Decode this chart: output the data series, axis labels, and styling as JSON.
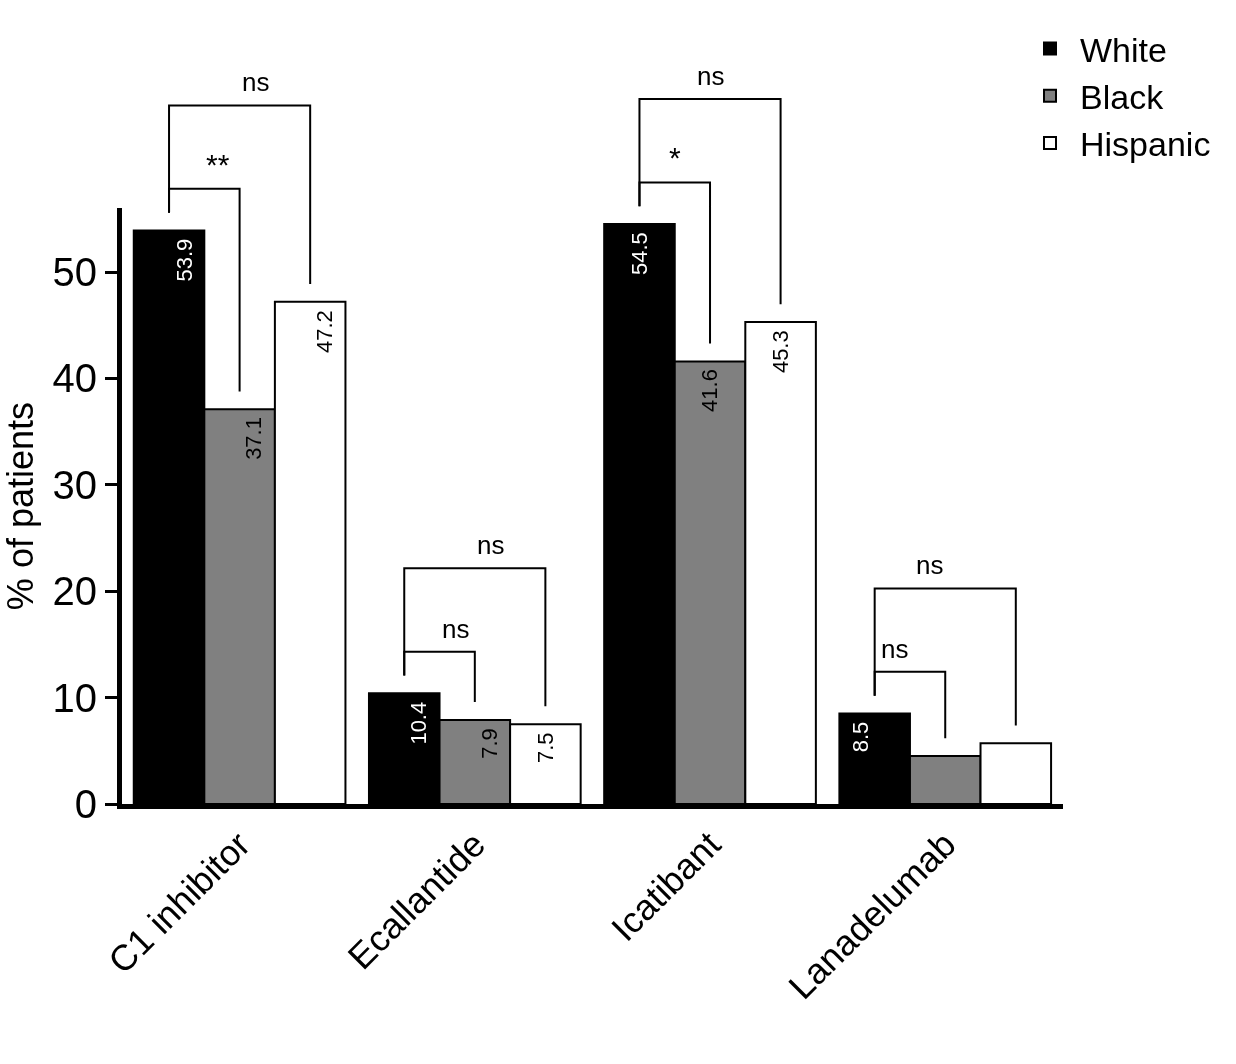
{
  "chart_data": {
    "type": "bar",
    "ylabel": "% of patients",
    "categories": [
      "C1 inhibitor",
      "Ecallantide",
      "Icatibant",
      "Lanadelumab"
    ],
    "series": [
      {
        "name": "White",
        "color": "#000000",
        "values": [
          53.9,
          10.4,
          54.5,
          8.5
        ],
        "value_labels": [
          "53.9",
          "10.4",
          "54.5",
          "8.5"
        ]
      },
      {
        "name": "Black",
        "color": "#808080",
        "values": [
          37.1,
          7.9,
          41.6,
          4.5
        ],
        "value_labels": [
          "37.1",
          "7.9",
          "41.6",
          null
        ]
      },
      {
        "name": "Hispanic",
        "color": "#ffffff",
        "values": [
          47.2,
          7.5,
          45.3,
          5.7
        ],
        "value_labels": [
          "47.2",
          "7.5",
          "45.3",
          null
        ]
      }
    ],
    "ylim": [
      0,
      56
    ],
    "yticks": [
      0,
      10,
      20,
      30,
      40,
      50
    ],
    "legend": "top right",
    "annotations": [
      "**",
      "ns",
      "ns",
      "ns",
      "*",
      "ns",
      "ns",
      "ns"
    ]
  }
}
